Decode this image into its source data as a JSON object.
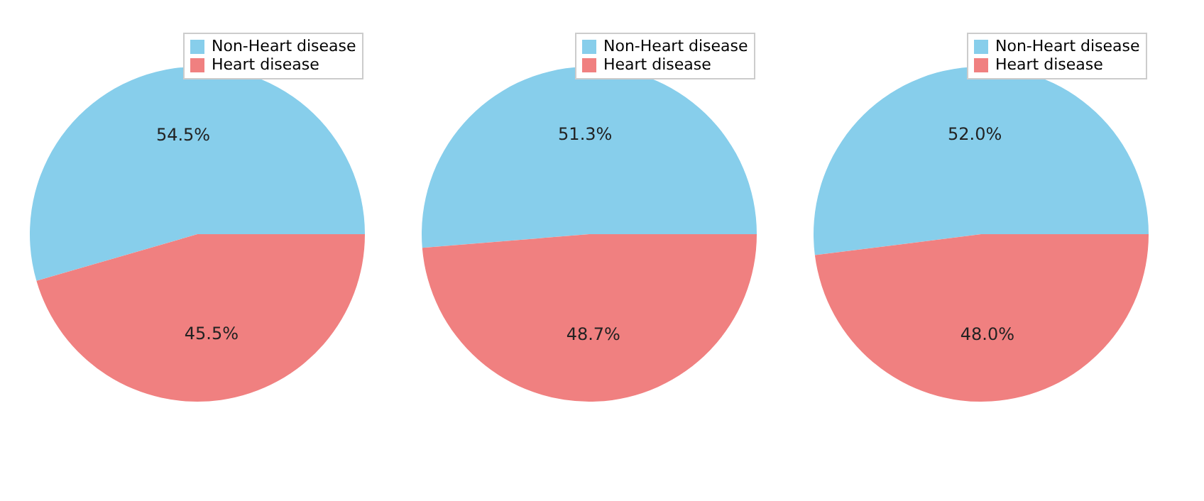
{
  "chart_data": [
    {
      "type": "pie",
      "categories": [
        "Non-Heart disease",
        "Heart disease"
      ],
      "values": [
        54.5,
        45.5
      ],
      "colors": [
        "#87ceeb",
        "#f08080"
      ],
      "value_labels": [
        "54.5%",
        "45.5%"
      ],
      "legend": "top right"
    },
    {
      "type": "pie",
      "categories": [
        "Non-Heart disease",
        "Heart disease"
      ],
      "values": [
        51.3,
        48.7
      ],
      "colors": [
        "#87ceeb",
        "#f08080"
      ],
      "value_labels": [
        "51.3%",
        "48.7%"
      ],
      "legend": "top right"
    },
    {
      "type": "pie",
      "categories": [
        "Non-Heart disease",
        "Heart disease"
      ],
      "values": [
        52.0,
        48.0
      ],
      "colors": [
        "#87ceeb",
        "#f08080"
      ],
      "value_labels": [
        "52.0%",
        "48.0%"
      ],
      "legend": "top right"
    }
  ]
}
